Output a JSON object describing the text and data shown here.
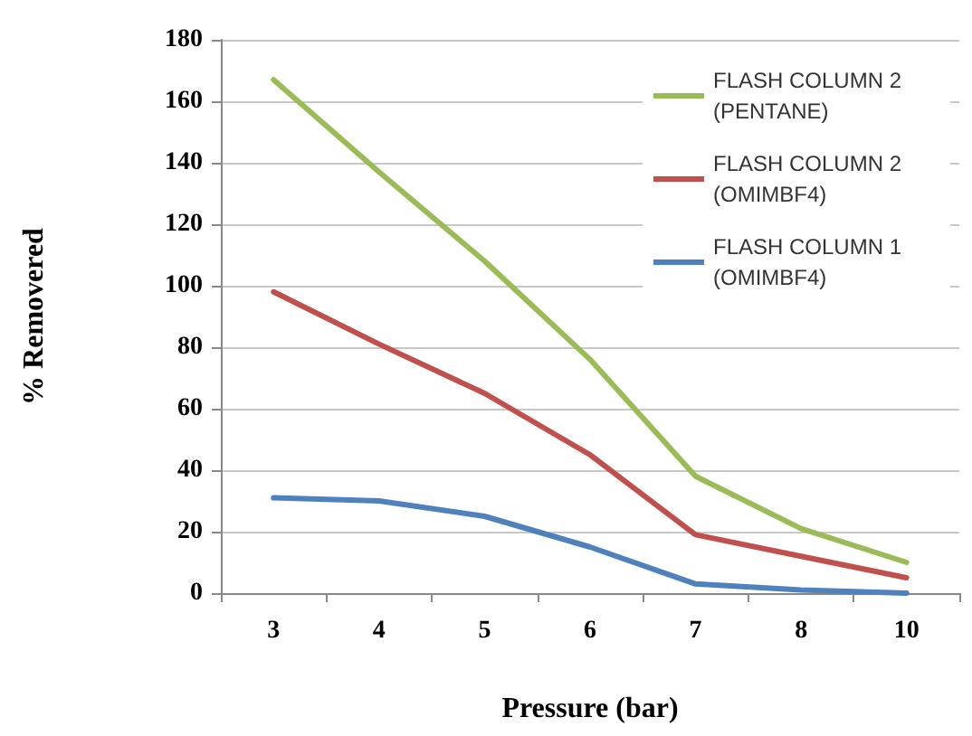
{
  "chart_data": {
    "type": "line",
    "xlabel": "Pressure (bar)",
    "ylabel": "% Removered",
    "categories": [
      "3",
      "4",
      "5",
      "6",
      "7",
      "8",
      "10"
    ],
    "series": [
      {
        "name": "FLASH COLUMN 2 (PENTANE)",
        "color": "#9bbb59",
        "values": [
          167,
          137,
          108,
          76,
          38,
          21,
          10
        ]
      },
      {
        "name": "FLASH COLUMN 2 (OMIMBF4)",
        "color": "#c0504d",
        "values": [
          98,
          81,
          65,
          45,
          19,
          12,
          5
        ]
      },
      {
        "name": "FLASH COLUMN 1 (OMIMBF4)",
        "color": "#4f81bd",
        "values": [
          31,
          30,
          25,
          15,
          3,
          1,
          0
        ]
      }
    ],
    "ylim": [
      0,
      180
    ],
    "yticks": [
      0,
      20,
      40,
      60,
      80,
      100,
      120,
      140,
      160,
      180
    ],
    "grid": "y",
    "legend": "top right",
    "marker": "none",
    "line_style": "solid"
  }
}
